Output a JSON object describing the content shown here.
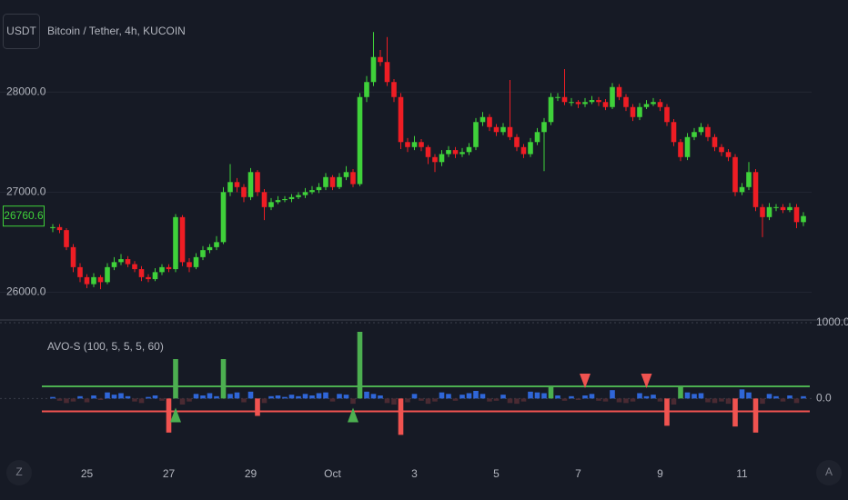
{
  "toolbar": {
    "currency": "USDT",
    "left_button": "Z",
    "right_button": "A"
  },
  "chart_data": [
    {
      "type": "candlestick",
      "title": "Bitcoin / Tether, 4h, KUCOIN",
      "up_color": "#3fd13a",
      "down_color": "#ee1d24",
      "ylim": [
        25740,
        28920
      ],
      "yticks": [
        {
          "value": 26000,
          "label": "26000.0"
        },
        {
          "value": 27000,
          "label": "27000.0"
        },
        {
          "value": 28000,
          "label": "28000.0"
        }
      ],
      "grid": true,
      "last_price": 26760.6,
      "categories": [
        null,
        null,
        null,
        null,
        null,
        "25",
        null,
        null,
        null,
        null,
        null,
        null,
        null,
        null,
        null,
        null,
        null,
        "27",
        null,
        null,
        null,
        null,
        null,
        null,
        null,
        null,
        null,
        null,
        null,
        "29",
        null,
        null,
        null,
        null,
        null,
        null,
        null,
        null,
        null,
        null,
        null,
        "Oct",
        null,
        null,
        null,
        null,
        null,
        null,
        null,
        null,
        null,
        null,
        null,
        "3",
        null,
        null,
        null,
        null,
        null,
        null,
        null,
        null,
        null,
        null,
        null,
        "5",
        null,
        null,
        null,
        null,
        null,
        null,
        null,
        null,
        null,
        null,
        null,
        "7",
        null,
        null,
        null,
        null,
        null,
        null,
        null,
        null,
        null,
        null,
        null,
        "9",
        null,
        null,
        null,
        null,
        null,
        null,
        null,
        null,
        null,
        null,
        null,
        "11",
        null,
        null,
        null,
        null,
        null,
        null,
        null,
        null,
        null
      ],
      "ohlc": [
        [
          26640,
          26680,
          26600,
          26650
        ],
        [
          26650,
          26680,
          26590,
          26620
        ],
        [
          26620,
          26640,
          26420,
          26450
        ],
        [
          26450,
          26480,
          26200,
          26250
        ],
        [
          26250,
          26290,
          26100,
          26150
        ],
        [
          26150,
          26180,
          26040,
          26080
        ],
        [
          26080,
          26190,
          26050,
          26150
        ],
        [
          26150,
          26170,
          26030,
          26100
        ],
        [
          26100,
          26290,
          26080,
          26250
        ],
        [
          26250,
          26350,
          26220,
          26300
        ],
        [
          26300,
          26380,
          26270,
          26330
        ],
        [
          26330,
          26360,
          26250,
          26280
        ],
        [
          26280,
          26310,
          26200,
          26230
        ],
        [
          26230,
          26260,
          26110,
          26150
        ],
        [
          26150,
          26180,
          26100,
          26130
        ],
        [
          26130,
          26240,
          26110,
          26200
        ],
        [
          26200,
          26280,
          26170,
          26250
        ],
        [
          26250,
          26280,
          26200,
          26230
        ],
        [
          26230,
          26780,
          26200,
          26750
        ],
        [
          26750,
          26770,
          26260,
          26300
        ],
        [
          26300,
          26340,
          26200,
          26250
        ],
        [
          26250,
          26390,
          26230,
          26350
        ],
        [
          26350,
          26460,
          26320,
          26420
        ],
        [
          26420,
          26480,
          26390,
          26450
        ],
        [
          26450,
          26560,
          26420,
          26500
        ],
        [
          26500,
          27050,
          26480,
          27000
        ],
        [
          27000,
          27280,
          26960,
          27100
        ],
        [
          27100,
          27140,
          27000,
          27050
        ],
        [
          27050,
          27080,
          26900,
          26950
        ],
        [
          26950,
          27240,
          26920,
          27200
        ],
        [
          27200,
          27220,
          26960,
          27000
        ],
        [
          27000,
          27030,
          26720,
          26850
        ],
        [
          26850,
          26940,
          26820,
          26900
        ],
        [
          26900,
          26960,
          26880,
          26920
        ],
        [
          26920,
          26960,
          26900,
          26930
        ],
        [
          26930,
          26980,
          26900,
          26950
        ],
        [
          26950,
          27000,
          26930,
          26970
        ],
        [
          26970,
          27040,
          26940,
          27000
        ],
        [
          27000,
          27060,
          26980,
          27020
        ],
        [
          27020,
          27090,
          26990,
          27050
        ],
        [
          27050,
          27190,
          27020,
          27150
        ],
        [
          27150,
          27170,
          27020,
          27050
        ],
        [
          27050,
          27190,
          27030,
          27150
        ],
        [
          27150,
          27260,
          27120,
          27200
        ],
        [
          27200,
          27230,
          27050,
          27080
        ],
        [
          27080,
          27990,
          27060,
          27950
        ],
        [
          27950,
          28160,
          27900,
          28100
        ],
        [
          28100,
          28600,
          28060,
          28350
        ],
        [
          28350,
          28420,
          28260,
          28300
        ],
        [
          28300,
          28550,
          28060,
          28100
        ],
        [
          28100,
          28130,
          27900,
          27950
        ],
        [
          27950,
          27990,
          27430,
          27500
        ],
        [
          27500,
          27540,
          27400,
          27450
        ],
        [
          27450,
          27560,
          27420,
          27500
        ],
        [
          27500,
          27530,
          27410,
          27450
        ],
        [
          27450,
          27470,
          27280,
          27350
        ],
        [
          27350,
          27380,
          27200,
          27300
        ],
        [
          27300,
          27420,
          27260,
          27380
        ],
        [
          27380,
          27460,
          27350,
          27420
        ],
        [
          27420,
          27450,
          27340,
          27380
        ],
        [
          27380,
          27440,
          27350,
          27400
        ],
        [
          27400,
          27490,
          27370,
          27450
        ],
        [
          27450,
          27740,
          27420,
          27700
        ],
        [
          27700,
          27800,
          27660,
          27750
        ],
        [
          27750,
          27780,
          27610,
          27650
        ],
        [
          27650,
          27680,
          27560,
          27600
        ],
        [
          27600,
          27690,
          27570,
          27650
        ],
        [
          27650,
          28120,
          27520,
          27550
        ],
        [
          27550,
          27580,
          27410,
          27450
        ],
        [
          27450,
          27480,
          27340,
          27380
        ],
        [
          27380,
          27540,
          27350,
          27500
        ],
        [
          27500,
          27640,
          27470,
          27600
        ],
        [
          27600,
          27740,
          27210,
          27700
        ],
        [
          27700,
          27990,
          27670,
          27950
        ],
        [
          27950,
          27990,
          27910,
          27950
        ],
        [
          27950,
          28230,
          27870,
          27900
        ],
        [
          27900,
          27940,
          27860,
          27900
        ],
        [
          27900,
          27920,
          27840,
          27880
        ],
        [
          27880,
          27940,
          27850,
          27900
        ],
        [
          27900,
          27960,
          27880,
          27920
        ],
        [
          27920,
          27950,
          27860,
          27900
        ],
        [
          27900,
          27930,
          27820,
          27850
        ],
        [
          27850,
          28090,
          27830,
          28050
        ],
        [
          28050,
          28080,
          27920,
          27950
        ],
        [
          27950,
          27980,
          27810,
          27850
        ],
        [
          27850,
          27880,
          27710,
          27750
        ],
        [
          27750,
          27890,
          27720,
          27850
        ],
        [
          27850,
          27920,
          27830,
          27880
        ],
        [
          27880,
          27940,
          27860,
          27900
        ],
        [
          27900,
          27930,
          27810,
          27850
        ],
        [
          27850,
          27880,
          27660,
          27700
        ],
        [
          27700,
          27730,
          27460,
          27500
        ],
        [
          27500,
          27530,
          27310,
          27350
        ],
        [
          27350,
          27590,
          27320,
          27550
        ],
        [
          27550,
          27640,
          27520,
          27600
        ],
        [
          27600,
          27690,
          27570,
          27650
        ],
        [
          27650,
          27680,
          27510,
          27550
        ],
        [
          27550,
          27580,
          27410,
          27450
        ],
        [
          27450,
          27480,
          27360,
          27400
        ],
        [
          27400,
          27430,
          27310,
          27350
        ],
        [
          27350,
          27380,
          26960,
          27000
        ],
        [
          27000,
          27090,
          26970,
          27050
        ],
        [
          27050,
          27300,
          27020,
          27200
        ],
        [
          27200,
          27230,
          26810,
          26850
        ],
        [
          26850,
          26880,
          26550,
          26750
        ],
        [
          26750,
          26890,
          26720,
          26850
        ],
        [
          26850,
          26880,
          26810,
          26850
        ],
        [
          26850,
          26880,
          26790,
          26820
        ],
        [
          26820,
          26890,
          26800,
          26850
        ],
        [
          26850,
          26880,
          26640,
          26700
        ],
        [
          26700,
          26800,
          26660,
          26760.6
        ]
      ]
    },
    {
      "type": "bar",
      "title": "AVO-S (100, 5, 5, 5, 60)",
      "ylim": [
        -560,
        1000
      ],
      "yticks": [
        {
          "value": 0,
          "label": "0.0"
        },
        {
          "value": 1000,
          "label": "1000.0"
        }
      ],
      "upper_band": 160,
      "lower_band": -170,
      "colors": {
        "strong_up": "#4caf50",
        "strong_down": "#f05350",
        "up": "#2f66d8",
        "down": "#4a2a32"
      },
      "values": [
        20,
        -30,
        -60,
        -40,
        30,
        -50,
        40,
        -20,
        80,
        50,
        70,
        30,
        -40,
        -60,
        20,
        40,
        -30,
        -450,
        520,
        -80,
        -40,
        60,
        40,
        70,
        30,
        520,
        60,
        80,
        -50,
        90,
        -230,
        -60,
        30,
        40,
        20,
        50,
        30,
        60,
        40,
        70,
        80,
        -40,
        60,
        50,
        -70,
        880,
        90,
        60,
        40,
        -60,
        -80,
        -480,
        -50,
        60,
        -30,
        -70,
        -40,
        80,
        60,
        -30,
        50,
        70,
        100,
        60,
        -40,
        -30,
        50,
        -60,
        -70,
        -40,
        90,
        80,
        70,
        160,
        40,
        -30,
        30,
        -20,
        40,
        60,
        -30,
        -40,
        110,
        -50,
        -60,
        -40,
        70,
        30,
        50,
        -40,
        -360,
        -80,
        160,
        80,
        60,
        70,
        -50,
        -60,
        -40,
        -70,
        -370,
        120,
        80,
        -450,
        -70,
        60,
        30,
        -40,
        40,
        -60,
        30
      ],
      "buy_signals": [
        18,
        44
      ],
      "sell_signals": [
        78,
        87
      ]
    }
  ]
}
